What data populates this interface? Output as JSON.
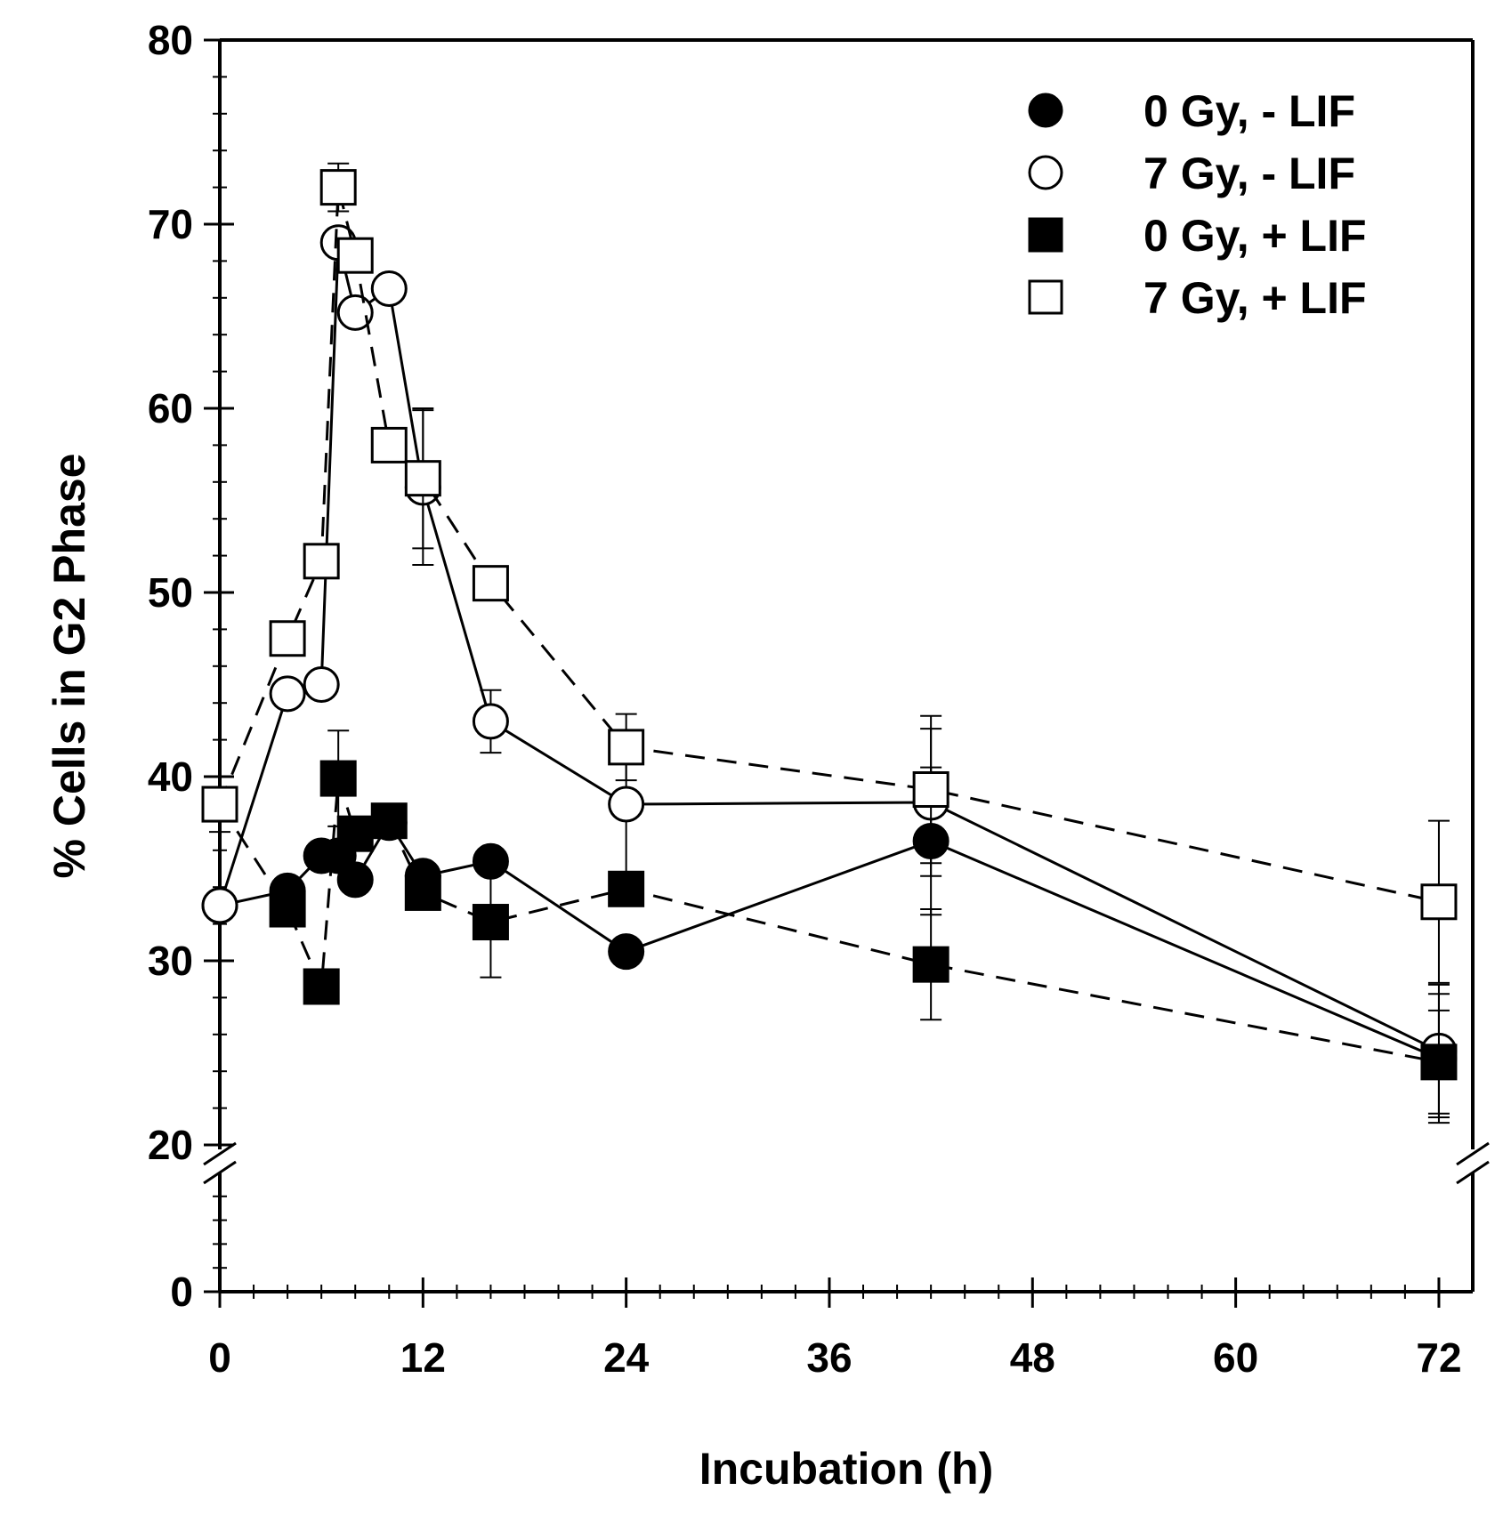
{
  "chart_data": {
    "type": "line",
    "xlabel": "Incubation (h)",
    "ylabel": "% Cells in G2 Phase",
    "xlim": [
      0,
      72
    ],
    "ylim": [
      0,
      80
    ],
    "y_axis_break": [
      20,
      30
    ],
    "x_axis_break_after": 72,
    "xticks": [
      0,
      12,
      24,
      36,
      48,
      60,
      72
    ],
    "yticks": [
      0,
      20,
      30,
      40,
      50,
      60,
      70,
      80
    ],
    "legend_position": "top-right",
    "series": [
      {
        "name": "0 Gy, - LIF",
        "marker": "filled-circle",
        "line": "solid",
        "x": [
          0,
          4,
          6,
          7,
          8,
          10,
          12,
          16,
          24,
          42,
          72
        ],
        "y": [
          33.0,
          33.8,
          35.7,
          35.7,
          34.4,
          37.5,
          34.6,
          35.4,
          30.5,
          36.5,
          24.7
        ],
        "err": [
          0,
          0,
          0,
          0,
          0,
          0,
          0,
          0,
          0,
          4.0,
          3.5
        ]
      },
      {
        "name": "7 Gy, - LIF",
        "marker": "open-circle",
        "line": "solid",
        "x": [
          0,
          4,
          6,
          7,
          8,
          10,
          12,
          16,
          24,
          42,
          72
        ],
        "y": [
          33.0,
          44.5,
          45.0,
          69.0,
          65.2,
          66.5,
          55.7,
          43.0,
          38.5,
          38.6,
          25.1
        ],
        "err": [
          0,
          0,
          0,
          0,
          0,
          0,
          4.2,
          1.7,
          4.0,
          4.0,
          3.6
        ]
      },
      {
        "name": "0 Gy, + LIF",
        "marker": "filled-square",
        "line": "dashed",
        "x": [
          0,
          4,
          6,
          7,
          8,
          10,
          12,
          16,
          24,
          42,
          72
        ],
        "y": [
          38.5,
          32.8,
          28.6,
          39.9,
          36.9,
          37.6,
          33.7,
          32.1,
          33.9,
          29.8,
          24.5
        ],
        "err": [
          0,
          0,
          0,
          2.6,
          0,
          0,
          0,
          3.0,
          0,
          3.0,
          2.8
        ]
      },
      {
        "name": "7 Gy, + LIF",
        "marker": "open-square",
        "line": "dashed",
        "x": [
          0,
          4,
          6,
          7,
          8,
          10,
          12,
          16,
          24,
          42,
          72
        ],
        "y": [
          38.5,
          47.5,
          51.7,
          72.0,
          68.3,
          58.0,
          56.2,
          50.5,
          41.6,
          39.3,
          33.2
        ],
        "err": [
          1.5,
          0,
          0,
          1.3,
          0,
          0,
          3.8,
          0,
          1.8,
          4.0,
          4.4
        ]
      }
    ]
  }
}
